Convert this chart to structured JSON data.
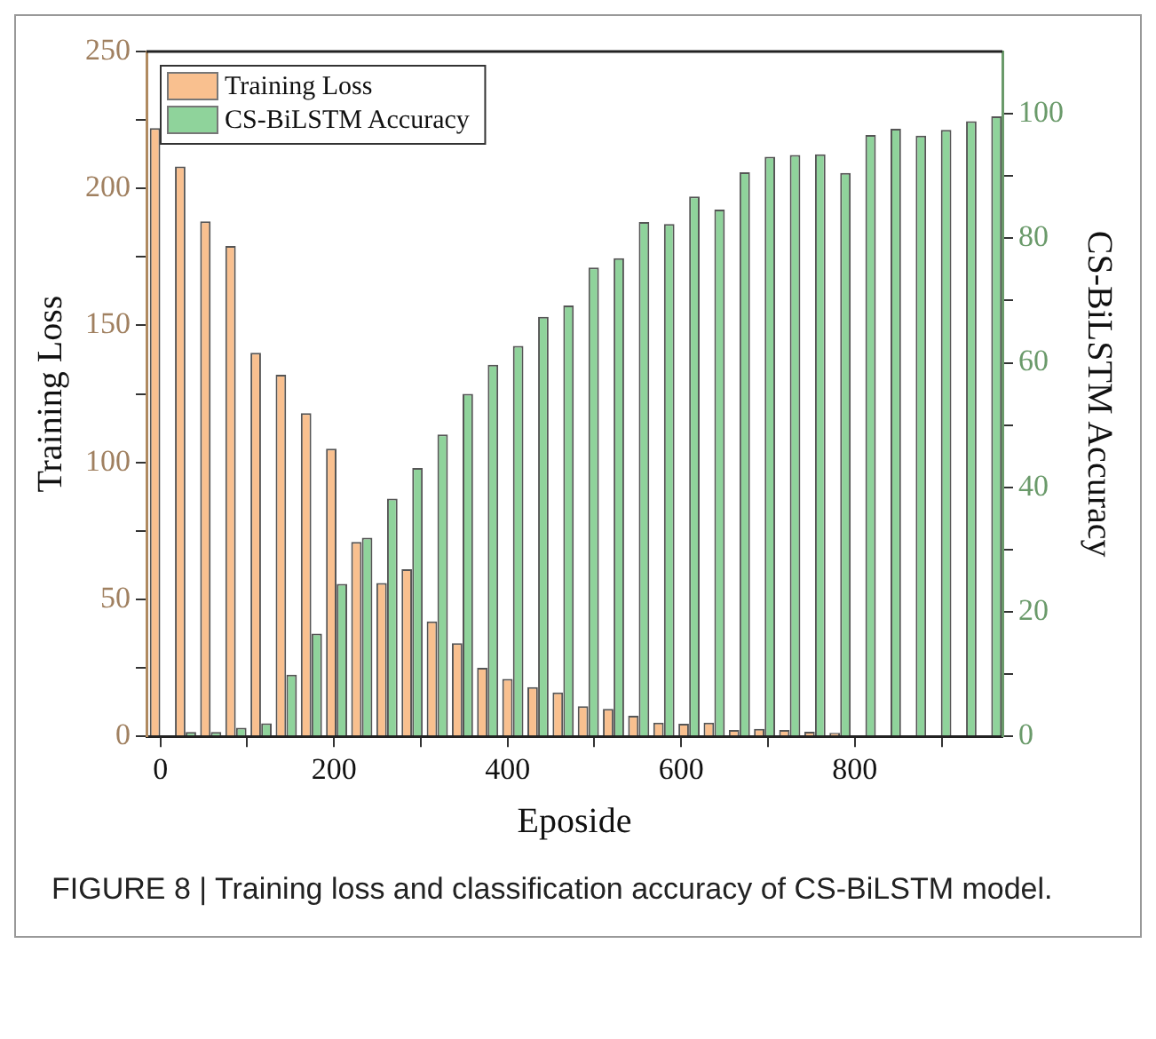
{
  "chart_data": {
    "type": "bar",
    "xlabel": "Eposide",
    "ylabel": "Training Loss",
    "y2label": "CS-BiLSTM Accuracy",
    "x": [
      0,
      29,
      58,
      87,
      116,
      145,
      174,
      203,
      232,
      261,
      290,
      319,
      348,
      377,
      406,
      435,
      464,
      493,
      522,
      551,
      580,
      609,
      638,
      667,
      696,
      725,
      754,
      783,
      812,
      841,
      870,
      899,
      928,
      957
    ],
    "series": [
      {
        "name": "Training Loss",
        "color": "#f9c08f",
        "values": [
          222,
          208,
          188,
          179,
          140,
          132,
          118,
          105,
          71,
          56,
          61,
          42,
          34,
          25,
          21,
          18,
          16,
          11,
          10,
          7.5,
          5,
          4.6,
          5,
          2.3,
          2.7,
          2.3,
          1.7,
          1.3,
          null,
          null,
          null,
          0,
          0,
          0
        ]
      },
      {
        "name": "CS-BiLSTM Accuracy",
        "color": "#8fd39b",
        "axis": "y2",
        "values": [
          0,
          0.7,
          0.7,
          1.4,
          2.1,
          9.9,
          16.5,
          24.5,
          31.9,
          38.2,
          43.1,
          48.5,
          55,
          59.7,
          62.7,
          67.4,
          69.2,
          75.3,
          76.8,
          82.6,
          82.3,
          86.7,
          84.6,
          90.6,
          93.1,
          93.4,
          93.5,
          90.5,
          96.6,
          97.6,
          96.5,
          97.4,
          98.8,
          99.6
        ]
      }
    ],
    "xlim": [
      -16,
      970
    ],
    "xticks": [
      0,
      {
        "value": 100,
        "label": null
      },
      200,
      {
        "value": 300,
        "label": null
      },
      400,
      {
        "value": 500,
        "label": null
      },
      600,
      {
        "value": 700,
        "label": null
      },
      800,
      {
        "value": 900,
        "label": null
      }
    ],
    "ylim": [
      0,
      250
    ],
    "yticks": [
      0,
      {
        "value": 25,
        "label": null
      },
      50,
      {
        "value": 75,
        "label": null
      },
      100,
      {
        "value": 125,
        "label": null
      },
      150,
      {
        "value": 175,
        "label": null
      },
      200,
      {
        "value": 225,
        "label": null
      },
      250
    ],
    "y2lim": [
      0,
      110
    ],
    "y2ticks": [
      0,
      {
        "value": 10,
        "label": null
      },
      20,
      {
        "value": 30,
        "label": null
      },
      40,
      {
        "value": 50,
        "label": null
      },
      60,
      {
        "value": 70,
        "label": null
      },
      80,
      {
        "value": 90,
        "label": null
      },
      100
    ],
    "legend": "top left",
    "grid": false,
    "annotations": [
      "FIGURE 8 | Training loss and classification accuracy of CS-BiLSTM model."
    ]
  }
}
